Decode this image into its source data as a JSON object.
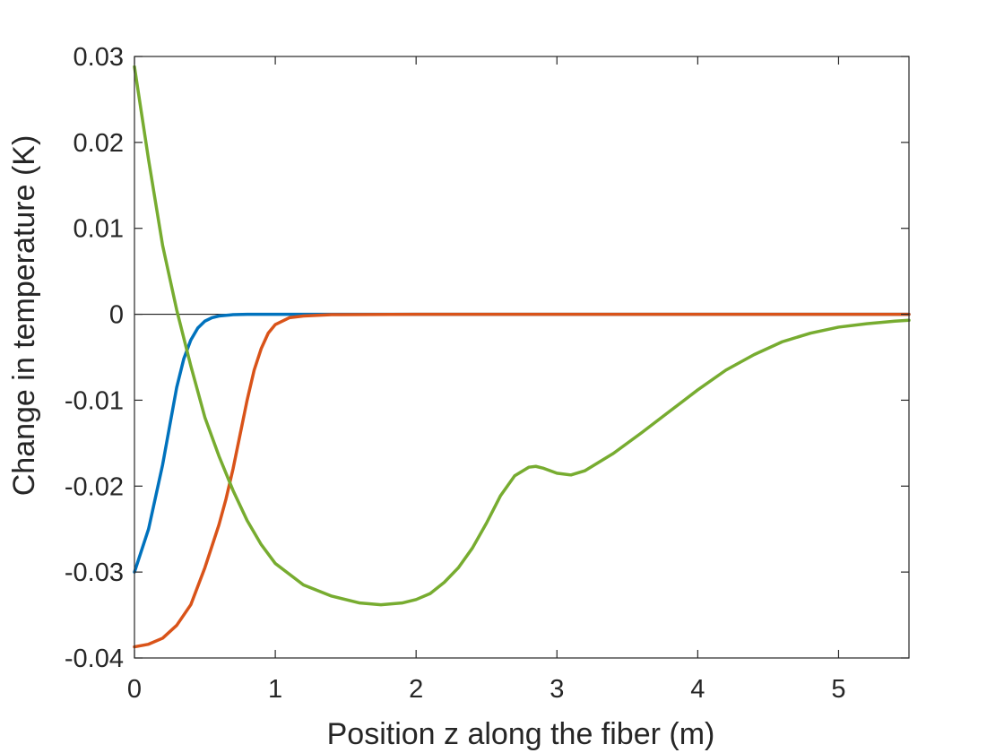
{
  "chart_data": {
    "type": "line",
    "title": "",
    "xlabel": "Position z along the fiber (m)",
    "ylabel": "Change in temperature (K)",
    "xlim": [
      0,
      5.5
    ],
    "ylim": [
      -0.04,
      0.03
    ],
    "xticks": [
      0,
      1,
      2,
      3,
      4,
      5
    ],
    "yticks": [
      -0.04,
      -0.03,
      -0.02,
      -0.01,
      0,
      0.01,
      0.02,
      0.03
    ],
    "xtick_labels": [
      "0",
      "1",
      "2",
      "3",
      "4",
      "5"
    ],
    "ytick_labels": [
      "-0.04",
      "-0.03",
      "-0.02",
      "-0.01",
      "0",
      "0.01",
      "0.02",
      "0.03"
    ],
    "grid": false,
    "box": true,
    "reference_line": {
      "y": 0,
      "color": "#000000"
    },
    "series": [
      {
        "color": "#0072BD",
        "x": [
          0,
          0.1,
          0.2,
          0.25,
          0.3,
          0.35,
          0.4,
          0.45,
          0.5,
          0.55,
          0.6,
          0.7,
          0.8,
          1.0,
          1.5,
          5.5
        ],
        "y": [
          -0.03,
          -0.025,
          -0.0175,
          -0.013,
          -0.0085,
          -0.0052,
          -0.003,
          -0.0016,
          -0.0008,
          -0.0004,
          -0.0002,
          -5e-05,
          -1e-05,
          0,
          0,
          0
        ]
      },
      {
        "color": "#D95319",
        "x": [
          0,
          0.1,
          0.2,
          0.3,
          0.4,
          0.5,
          0.6,
          0.65,
          0.7,
          0.75,
          0.8,
          0.85,
          0.9,
          0.95,
          1.0,
          1.1,
          1.2,
          1.4,
          2.0,
          5.5
        ],
        "y": [
          -0.0387,
          -0.0384,
          -0.0377,
          -0.0362,
          -0.0338,
          -0.0295,
          -0.0245,
          -0.0215,
          -0.018,
          -0.014,
          -0.01,
          -0.0065,
          -0.004,
          -0.0022,
          -0.0012,
          -0.0004,
          -0.0002,
          -5e-05,
          0,
          0
        ]
      },
      {
        "color": "#77AC30",
        "x": [
          0,
          0.1,
          0.2,
          0.3,
          0.4,
          0.5,
          0.6,
          0.7,
          0.8,
          0.9,
          1.0,
          1.2,
          1.4,
          1.6,
          1.75,
          1.9,
          2.0,
          2.1,
          2.2,
          2.3,
          2.4,
          2.5,
          2.6,
          2.7,
          2.8,
          2.85,
          2.9,
          3.0,
          3.1,
          3.2,
          3.4,
          3.6,
          3.8,
          4.0,
          4.2,
          4.4,
          4.6,
          4.8,
          5.0,
          5.2,
          5.4,
          5.5
        ],
        "y": [
          0.0288,
          0.018,
          0.008,
          0.0005,
          -0.006,
          -0.012,
          -0.0165,
          -0.0205,
          -0.024,
          -0.0268,
          -0.029,
          -0.0315,
          -0.0328,
          -0.0336,
          -0.0338,
          -0.0336,
          -0.0332,
          -0.0325,
          -0.0312,
          -0.0295,
          -0.0272,
          -0.0243,
          -0.0211,
          -0.0188,
          -0.0178,
          -0.0177,
          -0.0179,
          -0.0185,
          -0.0187,
          -0.0182,
          -0.0162,
          -0.0138,
          -0.0113,
          -0.0088,
          -0.0065,
          -0.0047,
          -0.0032,
          -0.0022,
          -0.0015,
          -0.0011,
          -0.0008,
          -0.0007
        ]
      }
    ]
  }
}
